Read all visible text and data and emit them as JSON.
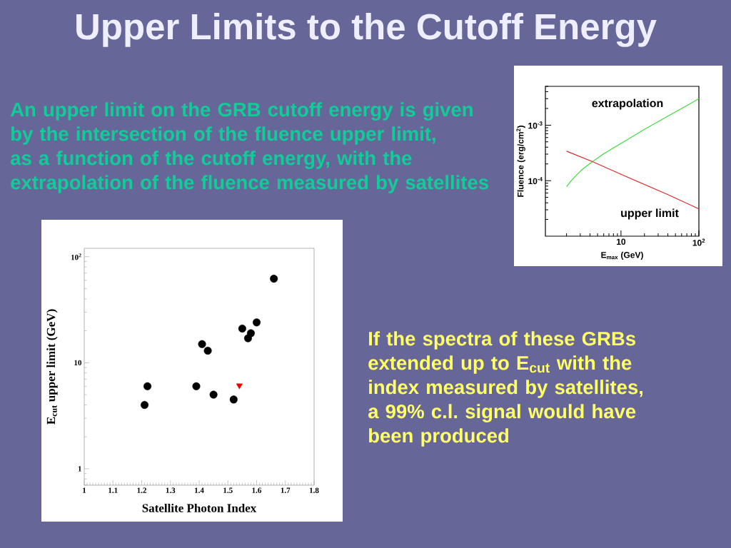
{
  "chart_data": [
    {
      "type": "other",
      "title": "Upper Limits to the Cutoff Energy",
      "annotations": [
        "An upper limit on the GRB cutoff energy is given by the intersection of the fluence upper limit,\nas a function of the cutoff energy, with the extrapolation of the fluence measured by satellites",
        "If the spectra of these GRBs extended up to E$_{cut}$ with the index measured by satellites, a 99% c.l. signal would have been produced"
      ]
    },
    {
      "type": "line",
      "xlabel": "E$_{max}$ (GeV)",
      "ylabel": "Fluence (erg/cm$^{2}$)",
      "log": "xy",
      "xlim": [
        1.07,
        100
      ],
      "ylim": [
        1e-05,
        0.005
      ],
      "xticks": [
        10,
        {
          "value": 100,
          "label": "10$^{2}$"
        }
      ],
      "yticks": [
        {
          "value": 0.0001,
          "label": "10$^{-4}$"
        },
        {
          "value": 0.001,
          "label": "10$^{-3}$"
        }
      ],
      "series": [
        {
          "name": "extrapolation",
          "color": "#3ddc3d",
          "x": [
            2,
            2.3,
            2.7,
            3.2,
            4.3,
            6,
            8,
            10,
            15,
            20,
            40,
            70,
            100
          ],
          "values": [
            7.8e-05,
            0.0001,
            0.000128,
            0.00016,
            0.00022,
            0.000305,
            0.00039,
            0.00047,
            0.00066,
            0.00084,
            0.00145,
            0.00225,
            0.003
          ]
        },
        {
          "name": "upper limit",
          "color": "#e02828",
          "x": [
            2,
            4.3,
            10,
            40,
            100
          ],
          "values": [
            0.00034,
            0.00022,
            0.00013,
            5.6e-05,
            3.1e-05
          ]
        }
      ]
    },
    {
      "type": "scatter",
      "xlabel": "Satellite Photon Index",
      "ylabel": "E$_{cut}$ upper limit (GeV)",
      "log": "y",
      "xlim": [
        1,
        1.8
      ],
      "ylim": [
        0.7,
        120
      ],
      "xticks": [
        1,
        1.1,
        1.2,
        1.3,
        1.4,
        1.5,
        1.6,
        1.7,
        1.8
      ],
      "yticks": [
        1,
        10,
        {
          "value": 100,
          "label": "10$^{2}$"
        }
      ],
      "series": [
        {
          "color": "#000000",
          "marker": "circle",
          "x": [
            1.21,
            1.22,
            1.39,
            1.41,
            1.43,
            1.45,
            1.52,
            1.55,
            1.57,
            1.58,
            1.6,
            1.66
          ],
          "values": [
            4.0,
            6.0,
            6.0,
            15,
            13,
            5.0,
            4.5,
            21,
            17,
            19,
            24,
            62
          ]
        },
        {
          "color": "#ee0000",
          "marker": "triangle",
          "x": [
            1.54
          ],
          "values": [
            6.1
          ]
        }
      ]
    }
  ]
}
